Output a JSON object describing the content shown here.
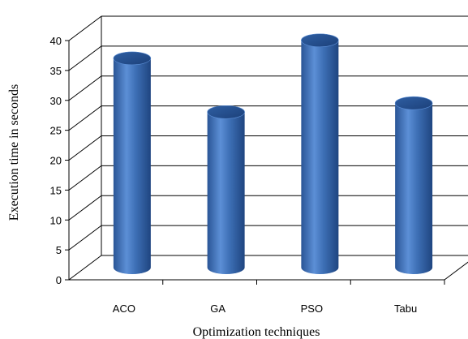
{
  "chart_data": {
    "type": "bar",
    "style": "3d-cylinder",
    "xlabel": "Optimization techniques",
    "ylabel": "Execution time in seconds",
    "categories": [
      "ACO",
      "GA",
      "PSO",
      "Tabu"
    ],
    "values": [
      35,
      26,
      38,
      27.5
    ],
    "ylim": [
      0,
      40
    ],
    "yticks": [
      "0",
      "5",
      "10",
      "15",
      "20",
      "25",
      "30",
      "35",
      "40"
    ],
    "grid": true,
    "bar_color": "#3d6fb5"
  }
}
